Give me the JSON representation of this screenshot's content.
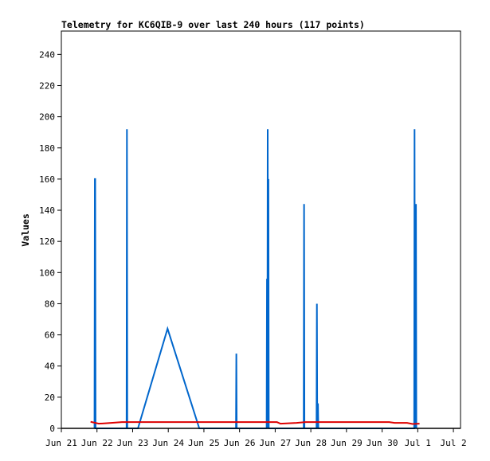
{
  "chart_data": {
    "type": "line",
    "title": "Telemetry for KC6QIB-9 over last 240 hours (117 points)",
    "xlabel": "",
    "ylabel": "Values",
    "x_ticks": [
      "Jun 21",
      "Jun 22",
      "Jun 23",
      "Jun 24",
      "Jun 25",
      "Jun 26",
      "Jun 27",
      "Jun 28",
      "Jun 29",
      "Jun 30",
      "Jul 1",
      "Jul 2"
    ],
    "y_ticks": [
      "0",
      "20",
      "40",
      "60",
      "80",
      "100",
      "120",
      "140",
      "160",
      "180",
      "200",
      "220",
      "240"
    ],
    "xlim": [
      0,
      11.2
    ],
    "ylim": [
      0,
      255
    ],
    "grid": false,
    "legend": "none",
    "series": [
      {
        "color": "#0066cc",
        "points": [
          [
            0.93,
            0
          ],
          [
            0.94,
            160
          ],
          [
            0.95,
            160
          ],
          [
            0.96,
            0
          ],
          [
            1.83,
            0
          ],
          [
            1.84,
            192
          ],
          [
            1.85,
            0
          ],
          [
            2.15,
            0
          ],
          [
            2.98,
            64
          ],
          [
            3.87,
            0
          ],
          [
            4.9,
            0
          ],
          [
            4.91,
            48
          ],
          [
            4.92,
            0
          ],
          [
            5.76,
            0
          ],
          [
            5.77,
            96
          ],
          [
            5.78,
            0
          ],
          [
            5.79,
            192
          ],
          [
            5.8,
            0
          ],
          [
            5.81,
            160
          ],
          [
            5.82,
            0
          ],
          [
            6.8,
            0
          ],
          [
            6.81,
            144
          ],
          [
            6.82,
            0
          ],
          [
            7.16,
            0
          ],
          [
            7.17,
            80
          ],
          [
            7.18,
            0
          ],
          [
            7.2,
            16
          ],
          [
            7.21,
            0
          ],
          [
            9.9,
            0
          ],
          [
            9.91,
            192
          ],
          [
            9.92,
            0
          ],
          [
            9.95,
            144
          ],
          [
            9.96,
            0
          ]
        ]
      },
      {
        "color": "#dd0000",
        "points": [
          [
            0.82,
            4.2
          ],
          [
            1.05,
            3.0
          ],
          [
            1.4,
            3.5
          ],
          [
            1.7,
            4.0
          ],
          [
            2.5,
            4.0
          ],
          [
            3.5,
            4.0
          ],
          [
            4.5,
            4.0
          ],
          [
            5.5,
            4.0
          ],
          [
            6.05,
            4.0
          ],
          [
            6.15,
            3.0
          ],
          [
            6.6,
            3.5
          ],
          [
            6.85,
            4.0
          ],
          [
            7.5,
            4.0
          ],
          [
            8.5,
            4.0
          ],
          [
            9.2,
            4.0
          ],
          [
            9.35,
            3.5
          ],
          [
            9.7,
            3.5
          ],
          [
            9.85,
            2.8
          ],
          [
            10.05,
            3.0
          ]
        ]
      }
    ]
  }
}
